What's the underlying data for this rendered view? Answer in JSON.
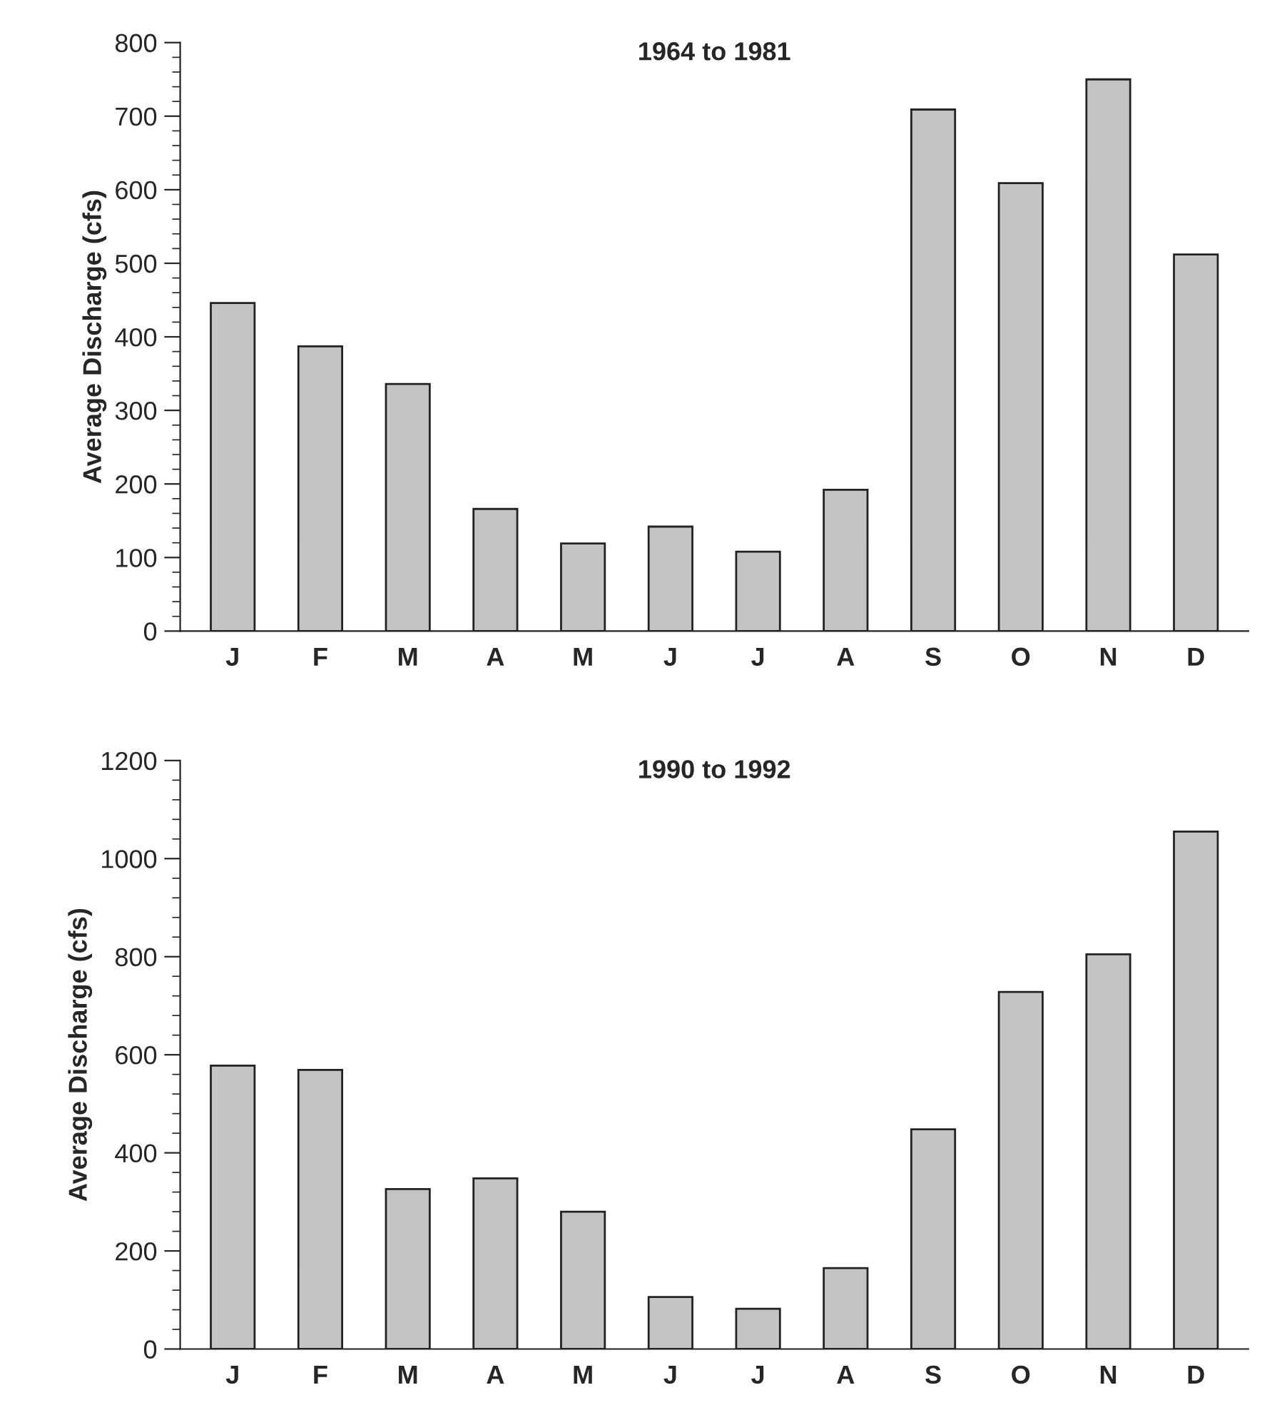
{
  "chart_data": [
    {
      "type": "bar",
      "title": "1964 to 1981",
      "ylabel": "Average Discharge (cfs)",
      "categories": [
        "J",
        "F",
        "M",
        "A",
        "M",
        "J",
        "J",
        "A",
        "S",
        "O",
        "N",
        "D"
      ],
      "values": [
        446,
        387,
        336,
        166,
        119,
        142,
        108,
        192,
        709,
        609,
        750,
        512
      ],
      "color": "#c4c4c4",
      "ylim": [
        0,
        800
      ],
      "yticks": [
        0,
        100,
        200,
        300,
        400,
        500,
        600,
        700,
        800
      ],
      "grid": false
    },
    {
      "type": "bar",
      "title": "1990 to 1992",
      "ylabel": "Average Discharge (cfs)",
      "categories": [
        "J",
        "F",
        "M",
        "A",
        "M",
        "J",
        "J",
        "A",
        "S",
        "O",
        "N",
        "D"
      ],
      "values": [
        578,
        569,
        326,
        348,
        280,
        106,
        82,
        165,
        448,
        728,
        805,
        1055
      ],
      "color": "#c4c4c4",
      "ylim": [
        0,
        1200
      ],
      "yticks": [
        0,
        200,
        400,
        600,
        800,
        1000,
        1200
      ],
      "grid": false
    }
  ]
}
